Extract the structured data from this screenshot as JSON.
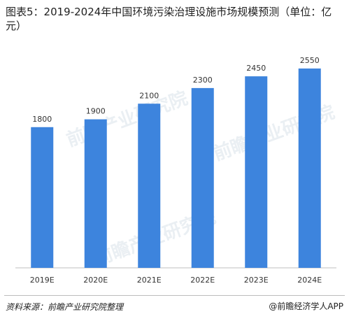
{
  "title": "图表5：2019-2024年中国环境污染治理设施市场规模预测（单位：亿元）",
  "source": "资料来源：前瞻产业研究院整理",
  "brand": "@前瞻经济学人APP",
  "watermark": "前瞻产业研究院",
  "colors": {
    "bar": "#3d84dd",
    "axis": "#bfbfbf",
    "text": "#333333"
  },
  "chart_data": {
    "type": "bar",
    "title": "图表5：2019-2024年中国环境污染治理设施市场规模预测（单位：亿元）",
    "categories": [
      "2019E",
      "2020E",
      "2021E",
      "2022E",
      "2023E",
      "2024E"
    ],
    "values": [
      1800,
      1900,
      2100,
      2300,
      2450,
      2550
    ],
    "ylim": [
      0,
      2800
    ],
    "grid": false,
    "legend": "none"
  }
}
